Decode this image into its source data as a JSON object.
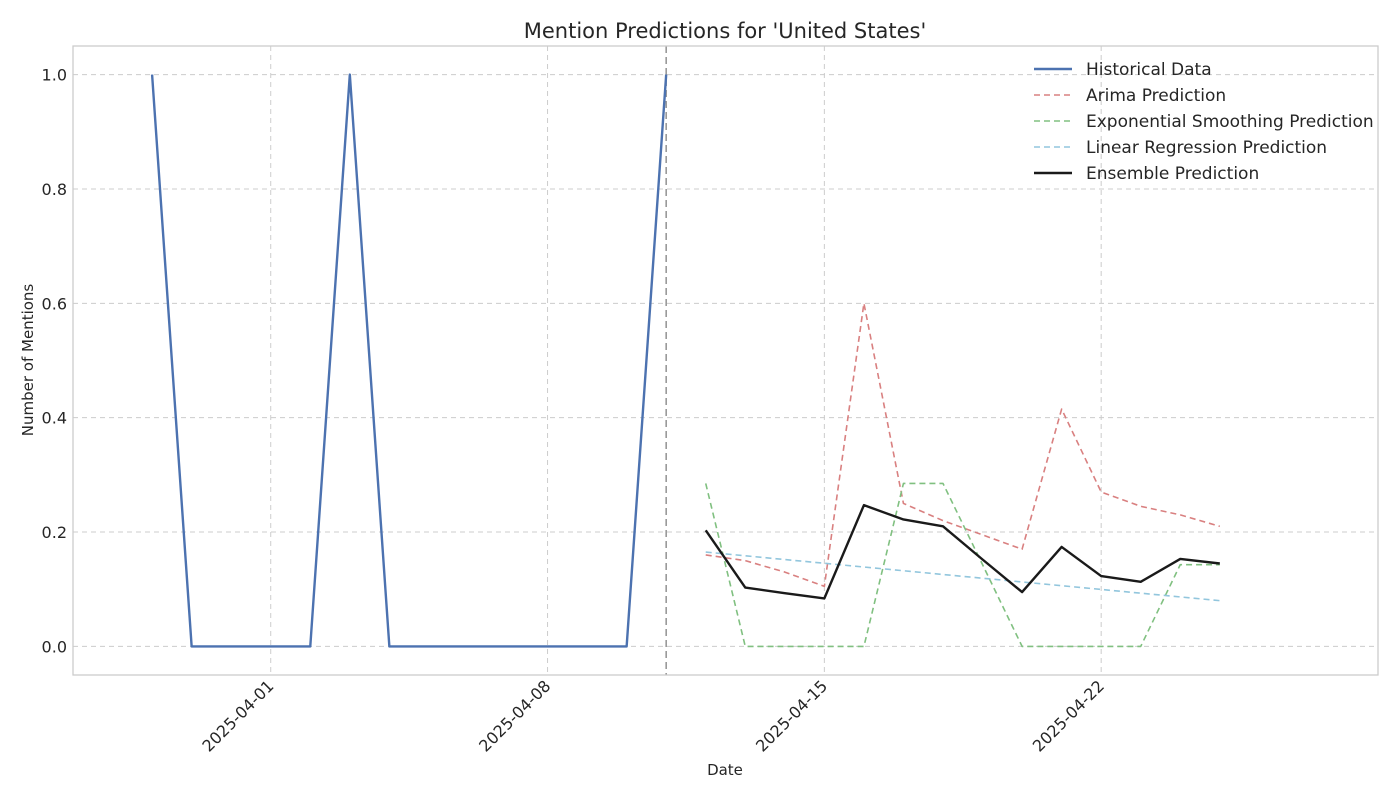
{
  "chart_data": {
    "type": "line",
    "title": "Mention Predictions for 'United States'",
    "xlabel": "Date",
    "ylabel": "Number of Mentions",
    "xlim": [
      "2025-03-27",
      "2025-04-29"
    ],
    "ylim": [
      -0.05,
      1.05
    ],
    "x_ticks": [
      "2025-04-01",
      "2025-04-08",
      "2025-04-15",
      "2025-04-22"
    ],
    "y_ticks": [
      0.0,
      0.2,
      0.4,
      0.6,
      0.8,
      1.0
    ],
    "grid": true,
    "legend_position": "top-right",
    "forecast_start_marker": "2025-04-11",
    "colors": {
      "historical": "#4c72b0",
      "arima": "#d98080",
      "exponential_smoothing": "#80c080",
      "linear_regression": "#92c6dd",
      "ensemble": "#1a1a1a",
      "grid": "#cccccc",
      "divider": "#999999"
    },
    "series": [
      {
        "name": "Historical Data",
        "style": "solid",
        "x": [
          "2025-03-29",
          "2025-03-30",
          "2025-03-31",
          "2025-04-01",
          "2025-04-02",
          "2025-04-03",
          "2025-04-04",
          "2025-04-05",
          "2025-04-06",
          "2025-04-07",
          "2025-04-08",
          "2025-04-09",
          "2025-04-10",
          "2025-04-11"
        ],
        "values": [
          1,
          0,
          0,
          0,
          0,
          1,
          0,
          0,
          0,
          0,
          0,
          0,
          0,
          1
        ]
      },
      {
        "name": "Arima Prediction",
        "style": "dashed",
        "x": [
          "2025-04-12",
          "2025-04-13",
          "2025-04-14",
          "2025-04-15",
          "2025-04-16",
          "2025-04-17",
          "2025-04-18",
          "2025-04-19",
          "2025-04-20",
          "2025-04-21",
          "2025-04-22",
          "2025-04-23",
          "2025-04-24",
          "2025-04-25"
        ],
        "values": [
          0.16,
          0.15,
          0.13,
          0.105,
          0.6,
          0.25,
          0.22,
          0.195,
          0.17,
          0.415,
          0.27,
          0.245,
          0.23,
          0.21
        ]
      },
      {
        "name": "Exponential Smoothing Prediction",
        "style": "dashed",
        "x": [
          "2025-04-12",
          "2025-04-13",
          "2025-04-14",
          "2025-04-15",
          "2025-04-16",
          "2025-04-17",
          "2025-04-18",
          "2025-04-19",
          "2025-04-20",
          "2025-04-21",
          "2025-04-22",
          "2025-04-23",
          "2025-04-24",
          "2025-04-25"
        ],
        "values": [
          0.285,
          0.0,
          0.0,
          0.0,
          0.0,
          0.285,
          0.285,
          0.143,
          0.0,
          0.0,
          0.0,
          0.0,
          0.143,
          0.143
        ]
      },
      {
        "name": "Linear Regression Prediction",
        "style": "dashed",
        "x": [
          "2025-04-12",
          "2025-04-25"
        ],
        "values": [
          0.165,
          0.08
        ]
      },
      {
        "name": "Ensemble Prediction",
        "style": "solid",
        "x": [
          "2025-04-12",
          "2025-04-13",
          "2025-04-14",
          "2025-04-15",
          "2025-04-16",
          "2025-04-17",
          "2025-04-18",
          "2025-04-19",
          "2025-04-20",
          "2025-04-21",
          "2025-04-22",
          "2025-04-23",
          "2025-04-24",
          "2025-04-25"
        ],
        "values": [
          0.203,
          0.103,
          0.093,
          0.084,
          0.247,
          0.222,
          0.21,
          0.152,
          0.095,
          0.174,
          0.123,
          0.113,
          0.153,
          0.145
        ]
      }
    ]
  }
}
